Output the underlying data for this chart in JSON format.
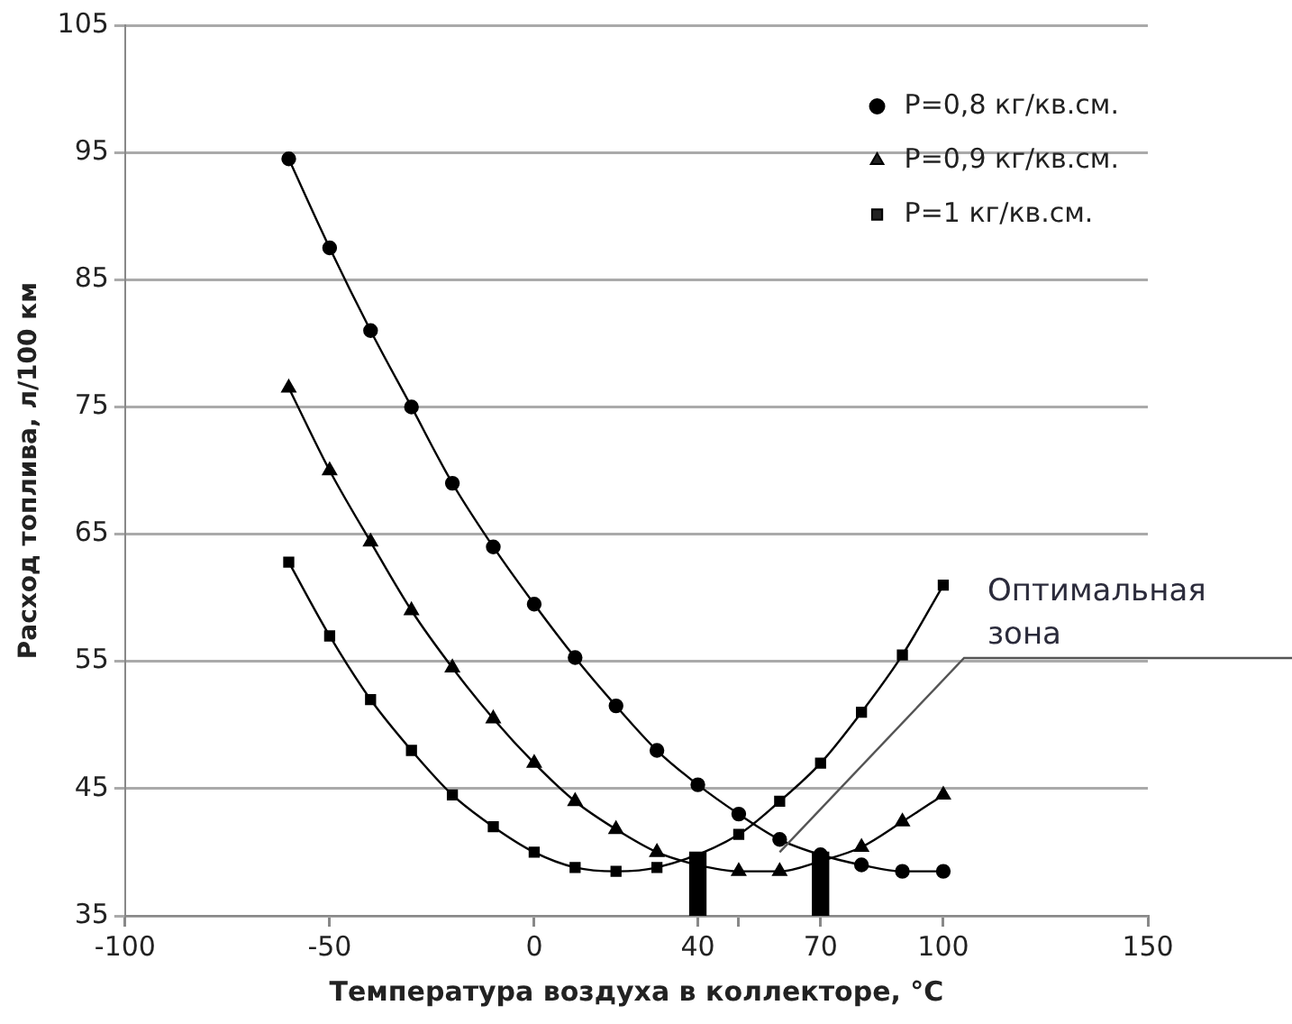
{
  "chart_data": {
    "type": "line",
    "xlabel": "Температура воздуха в коллекторе, °C",
    "ylabel": "Расход топлива, л/100 км",
    "x": [
      -60,
      -50,
      -40,
      -30,
      -20,
      -10,
      0,
      10,
      20,
      30,
      40,
      50,
      60,
      70,
      80,
      90,
      100
    ],
    "series": [
      {
        "name": "P=0,8 кг/кв.см.",
        "color": "#000000",
        "marker": "circle",
        "values": [
          94.5,
          87.5,
          81,
          75,
          69,
          64,
          59.5,
          55.3,
          51.5,
          48,
          45.3,
          43,
          41,
          39.8,
          39,
          38.5,
          38.5
        ]
      },
      {
        "name": "P=0,9 кг/кв.см.",
        "color": "#000000",
        "marker": "triangle",
        "values": [
          76.5,
          70,
          64.4,
          59,
          54.5,
          50.5,
          47,
          44,
          41.8,
          40,
          39,
          38.5,
          38.5,
          39.3,
          40.4,
          42.4,
          44.5
        ]
      },
      {
        "name": "P=1 кг/кв.см.",
        "color": "#000000",
        "marker": "square",
        "values": [
          62.8,
          57,
          52,
          48,
          44.5,
          42,
          40,
          38.8,
          38.5,
          38.8,
          null,
          41.4,
          44,
          47,
          51,
          55.5,
          61
        ]
      },
      {
        "type": "bar",
        "color": "#000000",
        "x": [
          40,
          70
        ],
        "values": [
          40,
          40
        ]
      }
    ],
    "xlim": [
      -100,
      150
    ],
    "xticks": [
      -100,
      -50,
      0,
      {
        "value": 40,
        "label": "40"
      },
      {
        "value": 50,
        "label": null
      },
      {
        "value": 70,
        "label": "70"
      },
      100,
      150
    ],
    "ylim": [
      35,
      105
    ],
    "yticks": [
      35,
      45,
      55,
      65,
      75,
      85,
      95,
      105
    ],
    "grid": "y",
    "legend": "top right",
    "annotations": [
      {
        "text": "Оптимальная зона",
        "x": 60,
        "y": 40
      }
    ]
  }
}
